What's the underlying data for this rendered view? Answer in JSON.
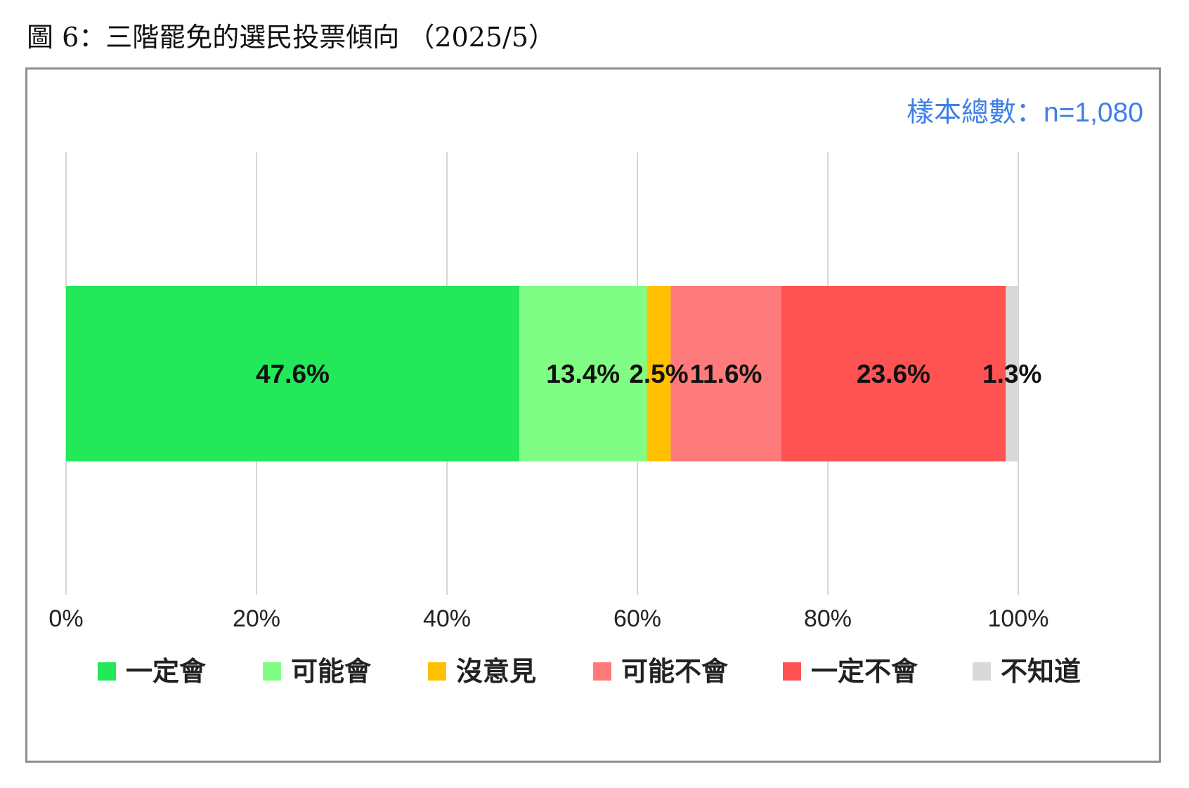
{
  "page": {
    "title": "圖 6：三階罷免的選民投票傾向 （2025/5）"
  },
  "chart_data": {
    "type": "bar",
    "orientation": "horizontal-stacked-100",
    "note": "樣本總數：n=1,080",
    "xlim": [
      0,
      100
    ],
    "x_ticks": [
      0,
      20,
      40,
      60,
      80,
      100
    ],
    "x_tick_labels": [
      "0%",
      "20%",
      "40%",
      "60%",
      "80%",
      "100%"
    ],
    "grid": true,
    "legend_position": "bottom",
    "series": [
      {
        "name": "一定會",
        "value": 47.6,
        "label": "47.6%",
        "color": "#22e85a"
      },
      {
        "name": "可能會",
        "value": 13.4,
        "label": "13.4%",
        "color": "#80fd84"
      },
      {
        "name": "沒意見",
        "value": 2.5,
        "label": "2.5%",
        "color": "#ffc000"
      },
      {
        "name": "可能不會",
        "value": 11.6,
        "label": "11.6%",
        "color": "#ff7b7b"
      },
      {
        "name": "一定不會",
        "value": 23.6,
        "label": "23.6%",
        "color": "#ff5353"
      },
      {
        "name": "不知道",
        "value": 1.3,
        "label": "1.3%",
        "color": "#d9d9d9"
      }
    ]
  }
}
